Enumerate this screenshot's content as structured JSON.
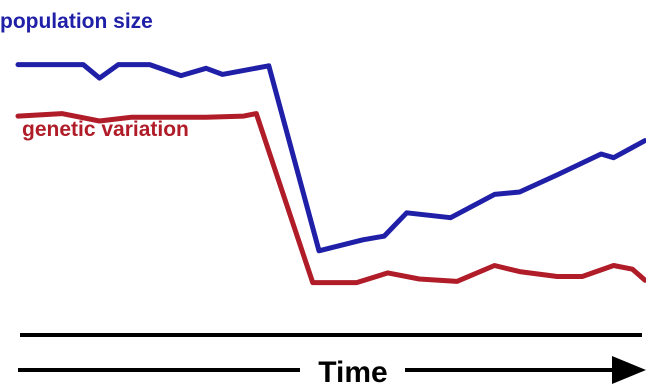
{
  "chart_data": {
    "type": "line",
    "xlabel": "Time",
    "ylabel": "",
    "x": [
      0,
      1,
      2,
      3,
      4,
      5,
      6,
      7,
      8,
      9,
      10,
      11,
      12,
      13,
      14,
      15,
      16,
      17,
      18,
      19,
      20,
      21,
      22,
      23,
      24,
      25,
      26,
      27,
      28,
      29,
      30,
      31,
      32,
      33,
      34,
      35,
      36,
      37,
      38,
      39,
      40,
      41,
      42,
      43,
      44,
      45,
      46,
      47,
      48,
      49,
      50
    ],
    "ylim": [
      0,
      100
    ],
    "xlim": [
      0,
      50
    ],
    "series": [
      {
        "name": "population size",
        "color": "#1f1fa8",
        "points": [
          [
            0,
            92
          ],
          [
            5.2,
            92
          ],
          [
            6.5,
            86.5
          ],
          [
            8,
            92
          ],
          [
            10.5,
            92
          ],
          [
            13,
            87.5
          ],
          [
            15,
            90.5
          ],
          [
            16.3,
            88
          ],
          [
            20,
            91.5
          ],
          [
            24,
            16
          ],
          [
            27.5,
            20.5
          ],
          [
            29.2,
            22
          ],
          [
            31,
            31.5
          ],
          [
            34.5,
            29.5
          ],
          [
            38,
            39
          ],
          [
            40,
            40
          ],
          [
            43,
            47
          ],
          [
            46.5,
            55.5
          ],
          [
            47.5,
            54
          ],
          [
            50,
            61
          ]
        ]
      },
      {
        "name": "genetic variation",
        "color": "#b01c28",
        "points": [
          [
            0,
            71
          ],
          [
            3.5,
            72
          ],
          [
            6.5,
            69
          ],
          [
            9,
            70.5
          ],
          [
            15,
            70.5
          ],
          [
            18,
            71
          ],
          [
            19,
            72
          ],
          [
            23.5,
            3
          ],
          [
            27,
            3
          ],
          [
            29.5,
            7
          ],
          [
            32,
            4.5
          ],
          [
            35,
            3.5
          ],
          [
            38,
            10
          ],
          [
            40,
            7.5
          ],
          [
            43,
            5.5
          ],
          [
            45,
            5.5
          ],
          [
            47.5,
            10
          ],
          [
            49,
            8.5
          ],
          [
            50,
            4
          ]
        ]
      }
    ],
    "grid": false,
    "legend": "inline-left"
  }
}
